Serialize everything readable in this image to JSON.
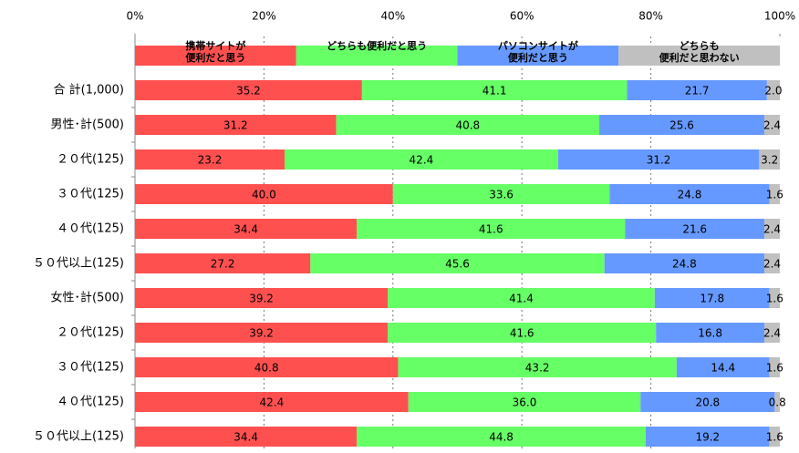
{
  "chart_data": {
    "type": "stacked-bar-horizontal",
    "categories": [
      "合 計(1,000)",
      "男性･計(500)",
      "２０代(125)",
      "３０代(125)",
      "４０代(125)",
      "５０代以上(125)",
      "女性･計(500)",
      "２０代(125)",
      "３０代(125)",
      "４０代(125)",
      "５０代以上(125)"
    ],
    "series": [
      {
        "name": "携帯サイトが\n便利だと思う",
        "color": "#ff5050",
        "values": [
          35.2,
          31.2,
          23.2,
          40.0,
          34.4,
          27.2,
          39.2,
          39.2,
          40.8,
          42.4,
          34.4
        ],
        "value_labels": [
          "35.2",
          "31.2",
          "23.2",
          "40.0",
          "34.4",
          "27.2",
          "39.2",
          "39.2",
          "40.8",
          "42.4",
          "34.4"
        ]
      },
      {
        "name": "どちらも便利だと思う",
        "color": "#66ff66",
        "values": [
          41.1,
          40.8,
          42.4,
          33.6,
          41.6,
          45.6,
          41.4,
          41.6,
          43.2,
          36.0,
          44.8
        ],
        "value_labels": [
          "41.1",
          "40.8",
          "42.4",
          "33.6",
          "41.6",
          "45.6",
          "41.4",
          "41.6",
          "43.2",
          "36.0",
          "44.8"
        ]
      },
      {
        "name": "パソコンサイトが\n便利だと思う",
        "color": "#6699ff",
        "values": [
          21.7,
          25.6,
          31.2,
          24.8,
          21.6,
          24.8,
          17.8,
          16.8,
          14.4,
          20.8,
          19.2
        ],
        "value_labels": [
          "21.7",
          "25.6",
          "31.2",
          "24.8",
          "21.6",
          "24.8",
          "17.8",
          "16.8",
          "14.4",
          "20.8",
          "19.2"
        ]
      },
      {
        "name": "どちらも\n便利だと思わない",
        "color": "#c0c0c0",
        "values": [
          2.0,
          2.4,
          3.2,
          1.6,
          2.4,
          2.4,
          1.6,
          2.4,
          1.6,
          0.8,
          1.6
        ],
        "value_labels": [
          "2.0",
          "2.4",
          "3.2",
          "1.6",
          "2.4",
          "2.4",
          "1.6",
          "2.4",
          "1.6",
          "0.8",
          "1.6"
        ]
      }
    ],
    "xlim": [
      0,
      100
    ],
    "xticks": [
      {
        "value": 0,
        "label": "0%"
      },
      {
        "value": 20,
        "label": "20%"
      },
      {
        "value": 40,
        "label": "40%"
      },
      {
        "value": 60,
        "label": "60%"
      },
      {
        "value": 80,
        "label": "80%"
      },
      {
        "value": 100,
        "label": "100%"
      }
    ],
    "grid": true
  }
}
